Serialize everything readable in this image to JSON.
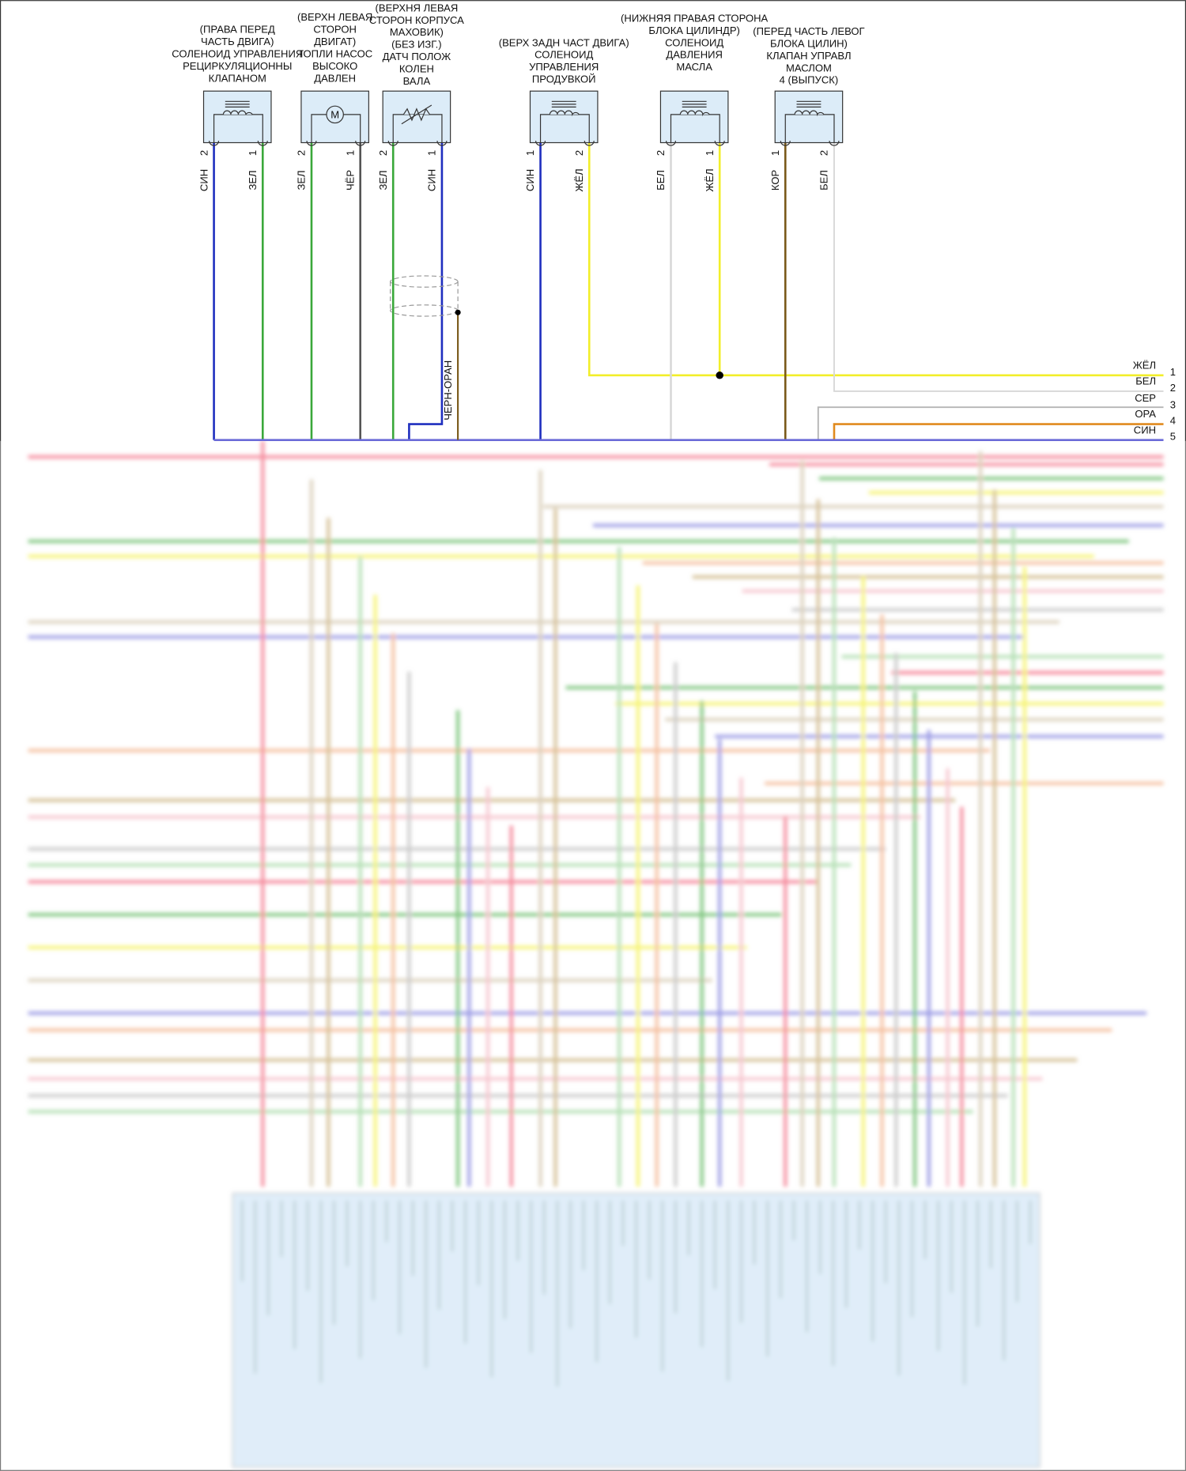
{
  "components": [
    {
      "label": [
        "(ПРАВА ПЕРЕД",
        "ЧАСТЬ ДВИГА)",
        "СОЛЕНОИД УПРАВЛЕНИЯ",
        "РЕЦИРКУЛЯЦИОННЫ",
        "КЛАПАНОМ"
      ],
      "pins": [
        {
          "pin": 2,
          "wire": "СИН"
        },
        {
          "pin": 1,
          "wire": "ЗЕЛ"
        }
      ]
    },
    {
      "label": [
        "(ВЕРХН ЛЕВАЯ",
        "СТОРОН",
        "ДВИГАТ)",
        "ТОПЛИ НАСОС",
        "ВЫСОКО",
        "ДАВЛЕН"
      ],
      "symbol": "M",
      "pins": [
        {
          "pin": 2,
          "wire": "ЗЕЛ"
        },
        {
          "pin": 1,
          "wire": "ЧЁР"
        }
      ]
    },
    {
      "label": [
        "(ВЕРХНЯ ЛЕВАЯ",
        "СТОРОН КОРПУСА",
        "МАХОВИК)",
        "(БЕЗ ИЗГ.)",
        "ДАТЧ ПОЛОЖ",
        "КОЛЕН",
        "ВАЛА"
      ],
      "pins": [
        {
          "pin": 2,
          "wire": "ЗЕЛ"
        },
        {
          "pin": 1,
          "wire": "СИН"
        }
      ]
    },
    {
      "label": [
        "(ВЕРХ ЗАДН ЧАСТ ДВИГА)",
        "СОЛЕНОИД",
        "УПРАВЛЕНИЯ",
        "ПРОДУВКОЙ"
      ],
      "pins": [
        {
          "pin": 1,
          "wire": "СИН"
        },
        {
          "pin": 2,
          "wire": "ЖЁЛ"
        }
      ]
    },
    {
      "label": [
        "(НИЖНЯЯ ПРАВАЯ СТОРОНА",
        "БЛОКА ЦИЛИНДР)",
        "СОЛЕНОИД",
        "ДАВЛЕНИЯ",
        "МАСЛА"
      ],
      "pins": [
        {
          "pin": 2,
          "wire": "БЕЛ"
        },
        {
          "pin": 1,
          "wire": "ЖЁЛ"
        }
      ]
    },
    {
      "label": [
        "(ПЕРЕД ЧАСТЬ ЛЕВОГ",
        "БЛОКА ЦИЛИН)",
        "КЛАПАН УПРАВЛ",
        "МАСЛОМ",
        "4 (ВЫПУСК)"
      ],
      "pins": [
        {
          "pin": 1,
          "wire": "КОР"
        },
        {
          "pin": 2,
          "wire": "БЕЛ"
        }
      ]
    }
  ],
  "shield_wire": "ЧЕРН-ОРАН",
  "connector": [
    {
      "wire": "ЖЁЛ",
      "pin": 1
    },
    {
      "wire": "БЕЛ",
      "pin": 2
    },
    {
      "wire": "СЕР",
      "pin": 3
    },
    {
      "wire": "ОРА",
      "pin": 4
    },
    {
      "wire": "СИН",
      "pin": 5
    }
  ]
}
